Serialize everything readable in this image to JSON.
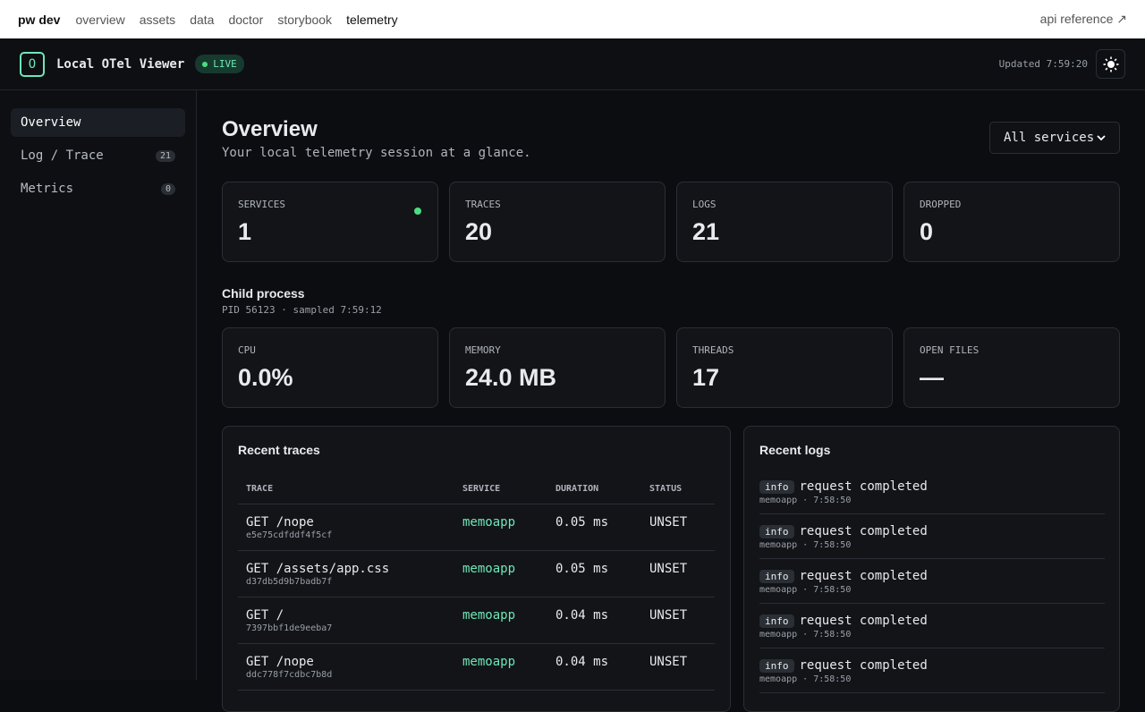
{
  "topnav": {
    "brand": "pw dev",
    "links": [
      "overview",
      "assets",
      "data",
      "doctor",
      "storybook",
      "telemetry"
    ],
    "api": "api reference ↗"
  },
  "header": {
    "logo": "O",
    "title": "Local OTel Viewer",
    "badge": "LIVE",
    "updated": "Updated 7:59:20"
  },
  "sidebar": {
    "items": [
      {
        "label": "Overview"
      },
      {
        "label": "Log / Trace",
        "count": 21
      },
      {
        "label": "Metrics",
        "count": 0
      }
    ]
  },
  "main": {
    "title": "Overview",
    "subtitle": "Your local telemetry session at a glance.",
    "select": "All services",
    "stats": [
      {
        "label": "SERVICES",
        "value": 1
      },
      {
        "label": "TRACES",
        "value": 20
      },
      {
        "label": "LOGS",
        "value": 21
      },
      {
        "label": "DROPPED",
        "value": 0
      }
    ],
    "process": {
      "title": "Child process",
      "meta": "PID 56123 · sampled 7:59:12",
      "stats": [
        {
          "label": "CPU",
          "value": "0.0%"
        },
        {
          "label": "MEMORY",
          "value": "24.0 MB"
        },
        {
          "label": "THREADS",
          "value": 17
        },
        {
          "label": "OPEN FILES",
          "value": "—"
        }
      ]
    },
    "traces": {
      "title": "Recent traces",
      "columns": [
        "TRACE",
        "SERVICE",
        "DURATION",
        "STATUS"
      ],
      "rows": [
        {
          "name": "GET /nope",
          "id": "e5e75cdfddf4f5cf",
          "service": "memoapp",
          "duration": "0.05 ms",
          "status": "UNSET"
        },
        {
          "name": "GET /assets/app.css",
          "id": "d37db5d9b7badb7f",
          "service": "memoapp",
          "duration": "0.05 ms",
          "status": "UNSET"
        },
        {
          "name": "GET /",
          "id": "7397bbf1de9eeba7",
          "service": "memoapp",
          "duration": "0.04 ms",
          "status": "UNSET"
        },
        {
          "name": "GET /nope",
          "id": "ddc778f7cdbc7b8d",
          "service": "memoapp",
          "duration": "0.04 ms",
          "status": "UNSET"
        }
      ]
    },
    "logs": {
      "title": "Recent logs",
      "items": [
        {
          "level": "info",
          "message": "request completed",
          "meta": "memoapp · 7:58:50"
        },
        {
          "level": "info",
          "message": "request completed",
          "meta": "memoapp · 7:58:50"
        },
        {
          "level": "info",
          "message": "request completed",
          "meta": "memoapp · 7:58:50"
        },
        {
          "level": "info",
          "message": "request completed",
          "meta": "memoapp · 7:58:50"
        },
        {
          "level": "info",
          "message": "request completed",
          "meta": "memoapp · 7:58:50"
        }
      ]
    }
  }
}
